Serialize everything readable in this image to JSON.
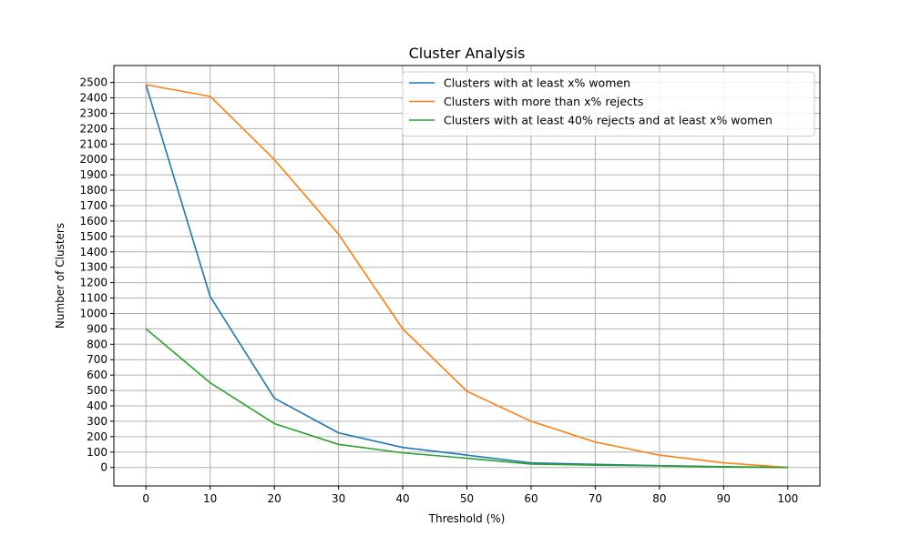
{
  "chart_data": {
    "type": "line",
    "title": "Cluster Analysis",
    "xlabel": "Threshold (%)",
    "ylabel": "Number of Clusters",
    "x": [
      0,
      10,
      20,
      30,
      40,
      50,
      60,
      70,
      80,
      90,
      100
    ],
    "xticks": [
      "0",
      "10",
      "20",
      "30",
      "40",
      "50",
      "60",
      "70",
      "80",
      "90",
      "100"
    ],
    "yticks": [
      "0",
      "100",
      "200",
      "300",
      "400",
      "500",
      "600",
      "700",
      "800",
      "900",
      "1000",
      "1100",
      "1200",
      "1300",
      "1400",
      "1500",
      "1600",
      "1700",
      "1800",
      "1900",
      "2000",
      "2100",
      "2200",
      "2300",
      "2400",
      "2500"
    ],
    "xlim": [
      -5,
      105
    ],
    "ylim": [
      -120,
      2610
    ],
    "grid": true,
    "legend_position": "top-right",
    "series": [
      {
        "name": "Clusters with at least x% women",
        "color": "#1f77b4",
        "values": [
          2485,
          1110,
          450,
          225,
          130,
          80,
          30,
          20,
          12,
          5,
          0
        ]
      },
      {
        "name": "Clusters with more than x% rejects",
        "color": "#ff7f0e",
        "values": [
          2485,
          2410,
          2000,
          1515,
          900,
          495,
          300,
          165,
          80,
          30,
          0
        ]
      },
      {
        "name": "Clusters with at least 40% rejects and at least x% women",
        "color": "#2ca02c",
        "values": [
          900,
          550,
          285,
          150,
          95,
          60,
          22,
          15,
          10,
          3,
          0
        ]
      }
    ]
  }
}
